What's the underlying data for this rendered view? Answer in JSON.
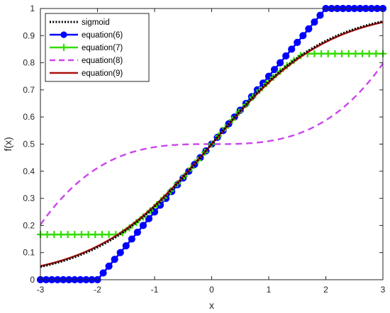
{
  "chart_data": {
    "type": "line",
    "title": "",
    "xlabel": "x",
    "ylabel": "f(x)",
    "xlim": [
      -3,
      3
    ],
    "ylim": [
      0,
      1
    ],
    "x_ticks": [
      "-3",
      "-2",
      "-1",
      "0",
      "1",
      "2",
      "3"
    ],
    "y_ticks": [
      "0",
      "0.1",
      "0.2",
      "0.3",
      "0.4",
      "0.5",
      "0.6",
      "0.7",
      "0.8",
      "0.9",
      "1"
    ],
    "grid": false,
    "legend_position": "top-left",
    "x": [
      -3,
      -2.5,
      -2,
      -1.5,
      -1,
      -0.5,
      0,
      0.5,
      1,
      1.5,
      2,
      2.5,
      3
    ],
    "series": [
      {
        "name": "sigmoid",
        "color": "#000000",
        "style": "dotted",
        "marker": "none",
        "values": [
          0.047,
          0.076,
          0.119,
          0.182,
          0.269,
          0.378,
          0.5,
          0.622,
          0.731,
          0.818,
          0.881,
          0.924,
          0.953
        ]
      },
      {
        "name": "equation(6)",
        "color": "#0000ff",
        "style": "solid",
        "marker": "circle",
        "values": [
          0,
          0,
          0,
          0.125,
          0.25,
          0.375,
          0.5,
          0.625,
          0.75,
          0.875,
          1,
          1,
          1
        ]
      },
      {
        "name": "equation(7)",
        "color": "#33dd00",
        "style": "solid",
        "marker": "plus",
        "values": [
          0.167,
          0.167,
          0.167,
          0.188,
          0.27,
          0.38,
          0.5,
          0.62,
          0.73,
          0.812,
          0.833,
          0.833,
          0.833
        ]
      },
      {
        "name": "equation(8)",
        "color": "#cc44ee",
        "style": "dashed",
        "marker": "none",
        "values": [
          0.22,
          0.33,
          0.41,
          0.465,
          0.49,
          0.498,
          0.5,
          0.502,
          0.51,
          0.535,
          0.59,
          0.67,
          0.78
        ]
      },
      {
        "name": "equation(9)",
        "color": "#aa1111",
        "style": "solid",
        "marker": "none",
        "values": [
          0.055,
          0.085,
          0.125,
          0.19,
          0.27,
          0.378,
          0.5,
          0.622,
          0.73,
          0.81,
          0.875,
          0.915,
          0.945
        ]
      }
    ]
  }
}
